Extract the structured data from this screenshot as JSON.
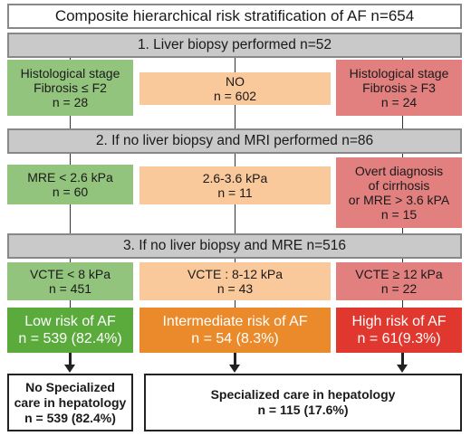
{
  "title": "Composite hierarchical risk stratification of AF n=654",
  "steps": [
    "1.  Liver biopsy performed n=52",
    "2. If no liver biopsy and MRI performed n=86",
    "3. If no liver biopsy and MRE n=516"
  ],
  "row1": {
    "left": [
      "Histological stage",
      "Fibrosis ≤ F2",
      "n = 28"
    ],
    "middle": [
      "NO",
      "n = 602"
    ],
    "right": [
      "Histological stage",
      "Fibrosis ≥ F3",
      "n = 24"
    ]
  },
  "row2": {
    "left": [
      "MRE < 2.6 kPa",
      "n = 60"
    ],
    "middle": [
      "2.6-3.6 kPa",
      "n = 11"
    ],
    "right": [
      "Overt diagnosis",
      "of cirrhosis",
      "or MRE > 3.6 kPA",
      "n = 15"
    ]
  },
  "row3": {
    "left": [
      "VCTE < 8 kPa",
      "n = 451"
    ],
    "middle": [
      "VCTE : 8-12 kPa",
      "n = 43"
    ],
    "right": [
      "VCTE ≥ 12 kPa",
      "n = 22"
    ]
  },
  "risk": {
    "low": [
      "Low risk of AF",
      "n = 539 (82.4%)"
    ],
    "intermediate": [
      "Intermediate risk of AF",
      "n = 54 (8.3%)"
    ],
    "high": [
      "High risk of AF",
      "n = 61(9.3%)"
    ]
  },
  "care": {
    "none": [
      "No Specialized",
      "care in hepatology",
      "n = 539 (82.4%)"
    ],
    "specialized": [
      "Specialized care in hepatology",
      "n = 115 (17.6%)"
    ]
  },
  "colors": {
    "green": "#93c47d",
    "orange": "#f9c89b",
    "red": "#e27f7f",
    "risk_green": "#5aab3c",
    "risk_orange": "#ea8a2a",
    "risk_red": "#e0372e",
    "step_gray": "#c9c9c9"
  }
}
